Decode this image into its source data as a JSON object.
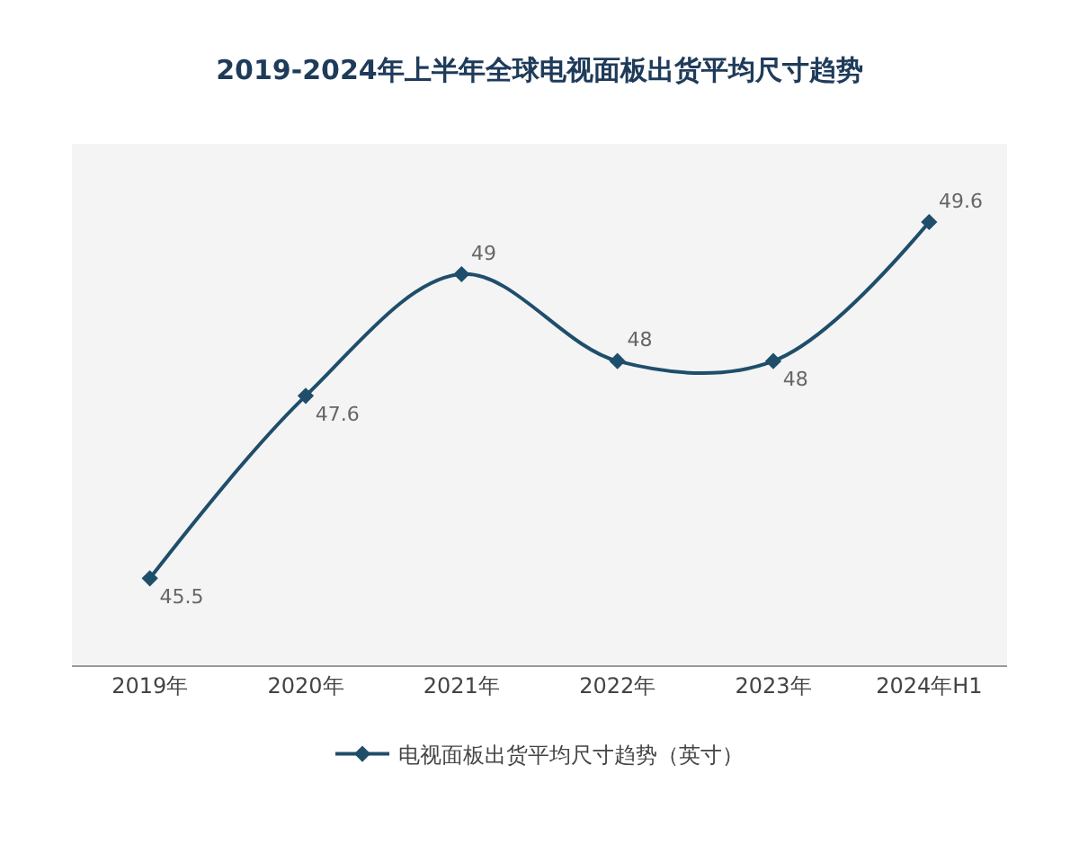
{
  "chart_data": {
    "type": "line",
    "title": "2019-2024年上半年全球电视面板出货平均尺寸趋势",
    "categories": [
      "2019年",
      "2020年",
      "2021年",
      "2022年",
      "2023年",
      "2024年H1"
    ],
    "series": [
      {
        "name": "电视面板出货平均尺寸趋势（英寸）",
        "color": "#1f4e6b",
        "values": [
          45.5,
          47.6,
          49,
          48,
          48,
          49.6
        ]
      }
    ],
    "data_labels": true,
    "marker": "diamond",
    "line_style": "solid",
    "legend": "bottom",
    "grid": false
  }
}
